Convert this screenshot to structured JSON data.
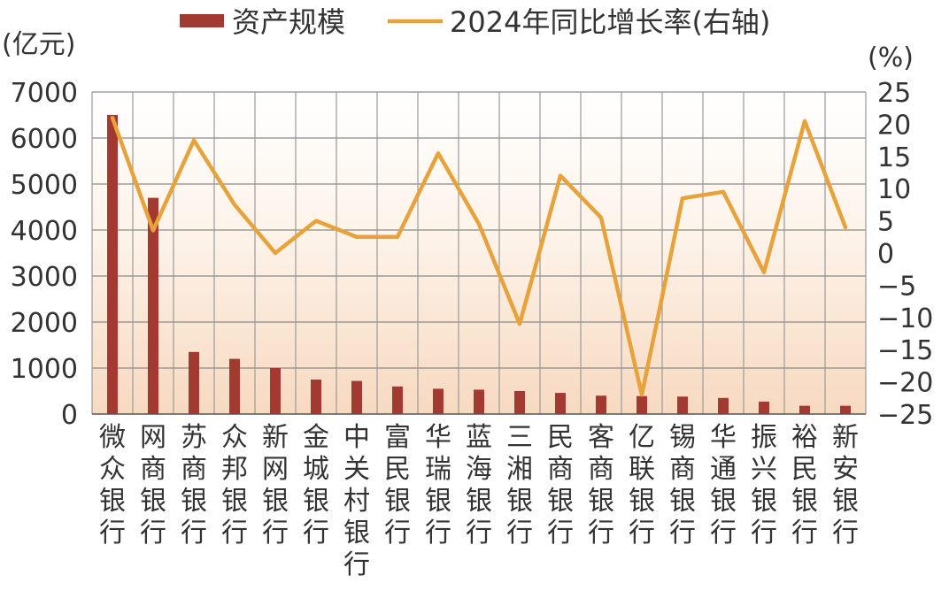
{
  "chart_data": {
    "type": "bar+line",
    "categories": [
      "微众银行",
      "网商银行",
      "苏商银行",
      "众邦银行",
      "新网银行",
      "金城银行",
      "中关村银行",
      "富民银行",
      "华瑞银行",
      "蓝海银行",
      "三湘银行",
      "民商银行",
      "客商银行",
      "亿联银行",
      "锡商银行",
      "华通银行",
      "振兴银行",
      "裕民银行",
      "新安银行"
    ],
    "series": [
      {
        "name": "资产规模",
        "type": "bar",
        "axis": "left",
        "color": "#a33a32",
        "values": [
          6500,
          4700,
          1350,
          1200,
          1000,
          750,
          720,
          600,
          550,
          530,
          500,
          460,
          400,
          390,
          380,
          350,
          270,
          180,
          180
        ]
      },
      {
        "name": "2024年同比增长率(右轴)",
        "type": "line",
        "axis": "right",
        "color": "#e8a23a",
        "values": [
          21,
          3.5,
          17.5,
          7.5,
          0,
          5,
          2.5,
          2.5,
          15.5,
          4.5,
          -11,
          12,
          5.5,
          -22,
          8.5,
          9.5,
          -3,
          20.5,
          4
        ]
      }
    ],
    "left_axis": {
      "unit": "(亿元)",
      "ylim": [
        0,
        7000
      ],
      "ticks": [
        0,
        1000,
        2000,
        3000,
        4000,
        5000,
        6000,
        7000
      ]
    },
    "right_axis": {
      "unit": "(%)",
      "ylim": [
        -25,
        25
      ],
      "ticks": [
        25,
        20,
        15,
        10,
        5,
        0,
        -5,
        -10,
        -15,
        -20,
        -25
      ],
      "tick_labels": [
        "25",
        "20",
        "15",
        "10",
        "5",
        "0",
        "−5",
        "−10",
        "−15",
        "−20",
        "−25"
      ]
    },
    "grid": true,
    "legend_position": "top"
  }
}
